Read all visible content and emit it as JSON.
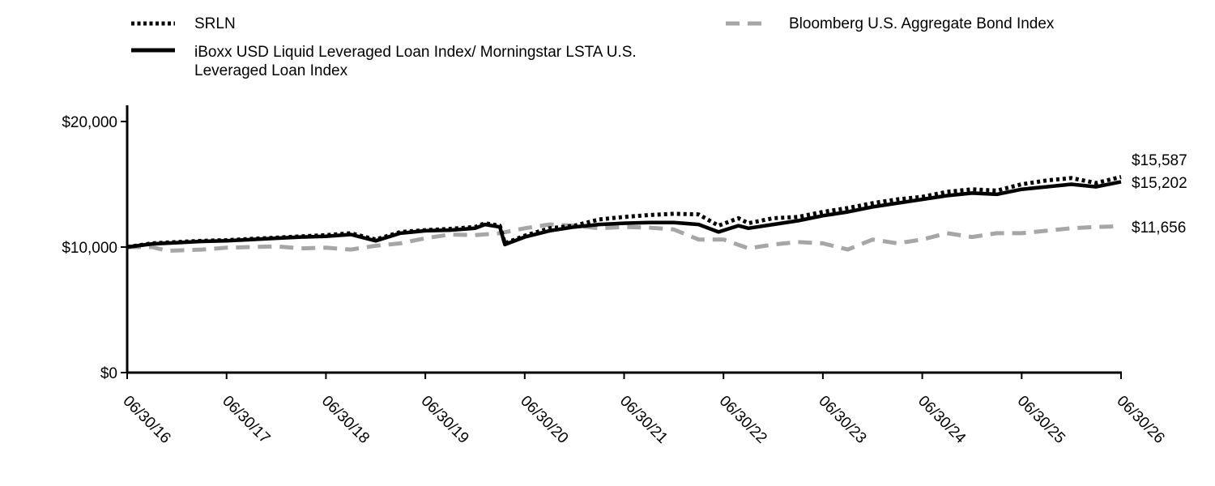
{
  "chart_data": {
    "type": "line",
    "title": "",
    "xlabel": "",
    "ylabel": "",
    "ylim": [
      0,
      20000
    ],
    "grid": false,
    "legend_position": "top",
    "y_ticks": [
      {
        "value": 0,
        "label": "$0"
      },
      {
        "value": 10000,
        "label": "$10,000"
      },
      {
        "value": 20000,
        "label": "$20,000"
      }
    ],
    "x_ticks": [
      "06/30/16",
      "06/30/17",
      "06/30/18",
      "06/30/19",
      "06/30/20",
      "06/30/21",
      "06/30/22",
      "06/30/23",
      "06/30/24",
      "06/30/25",
      "06/30/26"
    ],
    "series": [
      {
        "name": "SRLN",
        "style": "dotted",
        "color": "#000000",
        "end_label": "$15,587",
        "points": [
          [
            0,
            10000
          ],
          [
            0.25,
            10300
          ],
          [
            0.5,
            10400
          ],
          [
            0.75,
            10500
          ],
          [
            1,
            10550
          ],
          [
            1.25,
            10650
          ],
          [
            1.5,
            10750
          ],
          [
            1.75,
            10850
          ],
          [
            2,
            10950
          ],
          [
            2.25,
            11100
          ],
          [
            2.5,
            10600
          ],
          [
            2.75,
            11200
          ],
          [
            3,
            11350
          ],
          [
            3.25,
            11450
          ],
          [
            3.5,
            11600
          ],
          [
            3.6,
            11900
          ],
          [
            3.75,
            11700
          ],
          [
            3.8,
            10300
          ],
          [
            4,
            10900
          ],
          [
            4.25,
            11500
          ],
          [
            4.5,
            11700
          ],
          [
            4.75,
            12200
          ],
          [
            5,
            12400
          ],
          [
            5.25,
            12550
          ],
          [
            5.5,
            12650
          ],
          [
            5.75,
            12600
          ],
          [
            5.95,
            11700
          ],
          [
            6.15,
            12300
          ],
          [
            6.25,
            11900
          ],
          [
            6.5,
            12300
          ],
          [
            6.75,
            12400
          ],
          [
            7,
            12800
          ],
          [
            7.25,
            13100
          ],
          [
            7.5,
            13500
          ],
          [
            7.75,
            13800
          ],
          [
            8,
            14000
          ],
          [
            8.25,
            14400
          ],
          [
            8.5,
            14600
          ],
          [
            8.75,
            14500
          ],
          [
            9,
            15000
          ],
          [
            9.25,
            15300
          ],
          [
            9.5,
            15500
          ],
          [
            9.75,
            15100
          ],
          [
            10,
            15587
          ]
        ]
      },
      {
        "name": "iBoxx USD Liquid Leveraged Loan Index/ Morningstar LSTA U.S. Leveraged Loan Index",
        "style": "solid",
        "color": "#000000",
        "end_label": "$15,202",
        "points": [
          [
            0,
            10000
          ],
          [
            0.25,
            10250
          ],
          [
            0.5,
            10350
          ],
          [
            0.75,
            10450
          ],
          [
            1,
            10500
          ],
          [
            1.25,
            10600
          ],
          [
            1.5,
            10700
          ],
          [
            1.75,
            10800
          ],
          [
            2,
            10850
          ],
          [
            2.25,
            11000
          ],
          [
            2.5,
            10500
          ],
          [
            2.75,
            11100
          ],
          [
            3,
            11300
          ],
          [
            3.25,
            11350
          ],
          [
            3.5,
            11500
          ],
          [
            3.6,
            11800
          ],
          [
            3.75,
            11600
          ],
          [
            3.8,
            10200
          ],
          [
            4,
            10800
          ],
          [
            4.25,
            11300
          ],
          [
            4.5,
            11600
          ],
          [
            4.75,
            11800
          ],
          [
            5,
            11900
          ],
          [
            5.25,
            11950
          ],
          [
            5.5,
            11950
          ],
          [
            5.75,
            11800
          ],
          [
            5.95,
            11200
          ],
          [
            6.15,
            11700
          ],
          [
            6.25,
            11500
          ],
          [
            6.5,
            11800
          ],
          [
            6.75,
            12100
          ],
          [
            7,
            12500
          ],
          [
            7.25,
            12800
          ],
          [
            7.5,
            13200
          ],
          [
            7.75,
            13500
          ],
          [
            8,
            13800
          ],
          [
            8.25,
            14100
          ],
          [
            8.5,
            14300
          ],
          [
            8.75,
            14200
          ],
          [
            9,
            14600
          ],
          [
            9.25,
            14800
          ],
          [
            9.5,
            15000
          ],
          [
            9.75,
            14800
          ],
          [
            10,
            15202
          ]
        ]
      },
      {
        "name": "Bloomberg U.S. Aggregate Bond Index",
        "style": "dashed",
        "color": "#a6a6a6",
        "end_label": "$11,656",
        "points": [
          [
            0,
            10000
          ],
          [
            0.25,
            10000
          ],
          [
            0.4,
            9700
          ],
          [
            0.75,
            9800
          ],
          [
            1,
            9950
          ],
          [
            1.25,
            10000
          ],
          [
            1.5,
            10050
          ],
          [
            1.75,
            9900
          ],
          [
            2,
            9950
          ],
          [
            2.25,
            9800
          ],
          [
            2.5,
            10100
          ],
          [
            2.75,
            10300
          ],
          [
            3,
            10700
          ],
          [
            3.25,
            11000
          ],
          [
            3.5,
            10950
          ],
          [
            3.75,
            11100
          ],
          [
            4,
            11500
          ],
          [
            4.25,
            11800
          ],
          [
            4.5,
            11700
          ],
          [
            4.75,
            11500
          ],
          [
            5,
            11600
          ],
          [
            5.25,
            11550
          ],
          [
            5.5,
            11400
          ],
          [
            5.75,
            10600
          ],
          [
            6,
            10600
          ],
          [
            6.25,
            9900
          ],
          [
            6.5,
            10200
          ],
          [
            6.75,
            10400
          ],
          [
            7,
            10300
          ],
          [
            7.25,
            9800
          ],
          [
            7.5,
            10600
          ],
          [
            7.75,
            10300
          ],
          [
            8,
            10600
          ],
          [
            8.25,
            11100
          ],
          [
            8.5,
            10800
          ],
          [
            8.75,
            11100
          ],
          [
            9,
            11100
          ],
          [
            9.25,
            11300
          ],
          [
            9.5,
            11500
          ],
          [
            9.75,
            11600
          ],
          [
            10,
            11656
          ]
        ]
      }
    ]
  }
}
